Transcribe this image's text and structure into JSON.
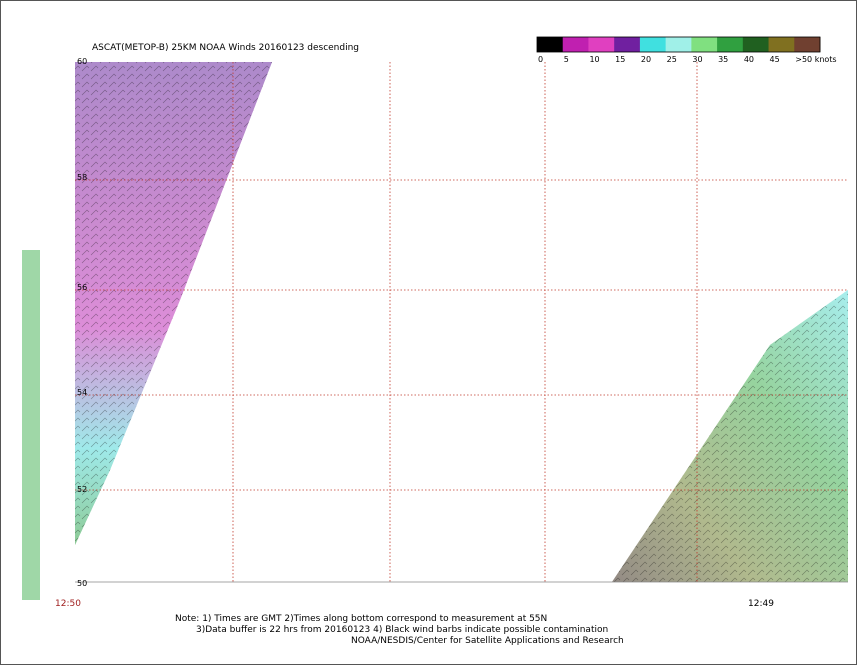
{
  "header": {
    "title": "ASCAT(METOP-B) 25KM NOAA Winds 20160123 descending"
  },
  "colorbar": {
    "labels": [
      "0",
      "5",
      "10",
      "15",
      "20",
      "25",
      "30",
      "35",
      "40",
      "45",
      ">50 knots"
    ],
    "colors": [
      "#000000",
      "#c020b0",
      "#e040c0",
      "#7020a0",
      "#40e0e0",
      "#a0f0e8",
      "#80e080",
      "#30a040",
      "#206020",
      "#807020",
      "#704030"
    ]
  },
  "map": {
    "lat_labels": [
      "60",
      "58",
      "56",
      "54",
      "52",
      "50"
    ],
    "time_labels": [
      "12:50",
      "12:49"
    ]
  },
  "notes": [
    "Note: 1) Times are GMT 2)Times along bottom correspond to measurement at 55N",
    "3)Data buffer is 22 hrs from 20160123 4) Black wind barbs indicate possible contamination",
    "NOAA/NESDIS/Center for Satellite Applications and Research"
  ]
}
